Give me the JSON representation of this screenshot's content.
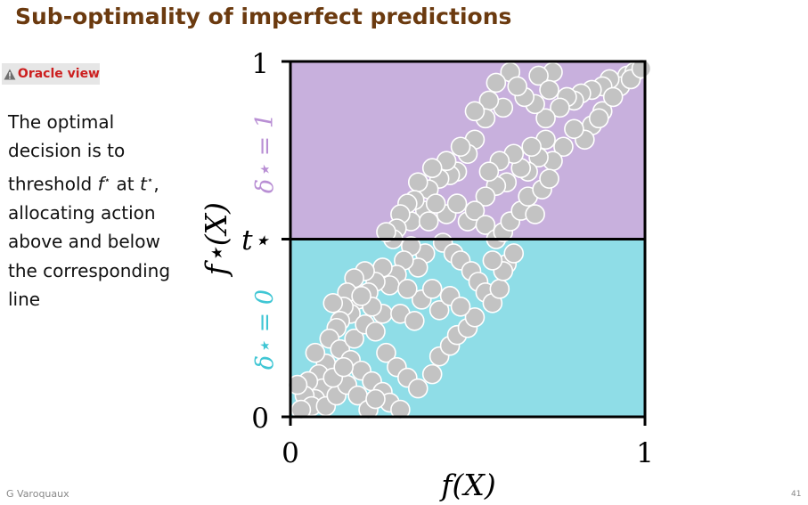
{
  "slide": {
    "title": "Sub-optimality of imperfect predictions",
    "badge_label": "Oracle view",
    "body_lines": [
      "The optimal",
      "decision is to",
      "threshold",
      "allocating action",
      "above and below",
      "the corresponding",
      "line"
    ],
    "threshold_fstar": "f",
    "threshold_star": "⋆",
    "threshold_at": "at",
    "threshold_t": "t",
    "threshold_tail": ","
  },
  "footer": {
    "author": "G Varoquaux",
    "page": "41"
  },
  "colors": {
    "title": "#6b3a0f",
    "upper_region": "#c8b0dd",
    "lower_region": "#8fdde7",
    "upper_label": "#b98fd4",
    "lower_label": "#3fc6d4",
    "points": "#c3c3c3",
    "warning": "#cc1f1f"
  },
  "chart_data": {
    "type": "scatter",
    "xlabel": "f(X)",
    "ylabel": "f⋆(X)",
    "xlim": [
      0,
      1
    ],
    "ylim": [
      0,
      1
    ],
    "x_ticks": [
      "0",
      "1"
    ],
    "y_ticks": [
      "0",
      "t⋆",
      "1"
    ],
    "threshold": 0.5,
    "threshold_label": "t⋆",
    "upper_region_label": "δ⋆ = 1",
    "lower_region_label": "δ⋆ = 0",
    "points": [
      [
        0.95,
        0.96
      ],
      [
        0.97,
        0.97
      ],
      [
        0.93,
        0.93
      ],
      [
        0.96,
        0.95
      ],
      [
        0.9,
        0.95
      ],
      [
        0.88,
        0.93
      ],
      [
        0.85,
        0.92
      ],
      [
        0.82,
        0.91
      ],
      [
        0.8,
        0.89
      ],
      [
        0.78,
        0.9
      ],
      [
        0.74,
        0.97
      ],
      [
        0.7,
        0.96
      ],
      [
        0.73,
        0.92
      ],
      [
        0.76,
        0.87
      ],
      [
        0.72,
        0.84
      ],
      [
        0.69,
        0.88
      ],
      [
        0.66,
        0.9
      ],
      [
        0.62,
        0.97
      ],
      [
        0.64,
        0.93
      ],
      [
        0.58,
        0.94
      ],
      [
        0.6,
        0.87
      ],
      [
        0.56,
        0.89
      ],
      [
        0.55,
        0.84
      ],
      [
        0.52,
        0.86
      ],
      [
        0.85,
        0.82
      ],
      [
        0.88,
        0.86
      ],
      [
        0.83,
        0.78
      ],
      [
        0.8,
        0.81
      ],
      [
        0.77,
        0.76
      ],
      [
        0.74,
        0.72
      ],
      [
        0.72,
        0.78
      ],
      [
        0.7,
        0.73
      ],
      [
        0.68,
        0.76
      ],
      [
        0.67,
        0.69
      ],
      [
        0.65,
        0.7
      ],
      [
        0.63,
        0.74
      ],
      [
        0.61,
        0.66
      ],
      [
        0.59,
        0.72
      ],
      [
        0.58,
        0.65
      ],
      [
        0.56,
        0.69
      ],
      [
        0.55,
        0.62
      ],
      [
        0.52,
        0.78
      ],
      [
        0.5,
        0.74
      ],
      [
        0.48,
        0.76
      ],
      [
        0.47,
        0.69
      ],
      [
        0.45,
        0.68
      ],
      [
        0.44,
        0.72
      ],
      [
        0.42,
        0.67
      ],
      [
        0.4,
        0.7
      ],
      [
        0.39,
        0.64
      ],
      [
        0.38,
        0.58
      ],
      [
        0.36,
        0.66
      ],
      [
        0.35,
        0.61
      ],
      [
        0.34,
        0.55
      ],
      [
        0.33,
        0.6
      ],
      [
        0.31,
        0.57
      ],
      [
        0.3,
        0.53
      ],
      [
        0.29,
        0.5
      ],
      [
        0.27,
        0.52
      ],
      [
        0.44,
        0.57
      ],
      [
        0.47,
        0.6
      ],
      [
        0.5,
        0.55
      ],
      [
        0.52,
        0.58
      ],
      [
        0.55,
        0.54
      ],
      [
        0.58,
        0.5
      ],
      [
        0.6,
        0.52
      ],
      [
        0.62,
        0.55
      ],
      [
        0.65,
        0.58
      ],
      [
        0.67,
        0.62
      ],
      [
        0.69,
        0.57
      ],
      [
        0.71,
        0.64
      ],
      [
        0.73,
        0.67
      ],
      [
        0.41,
        0.6
      ],
      [
        0.39,
        0.55
      ],
      [
        0.43,
        0.49
      ],
      [
        0.46,
        0.46
      ],
      [
        0.48,
        0.44
      ],
      [
        0.51,
        0.41
      ],
      [
        0.53,
        0.38
      ],
      [
        0.55,
        0.35
      ],
      [
        0.57,
        0.32
      ],
      [
        0.59,
        0.36
      ],
      [
        0.61,
        0.43
      ],
      [
        0.63,
        0.46
      ],
      [
        0.6,
        0.41
      ],
      [
        0.57,
        0.44
      ],
      [
        0.38,
        0.46
      ],
      [
        0.36,
        0.42
      ],
      [
        0.34,
        0.48
      ],
      [
        0.32,
        0.44
      ],
      [
        0.3,
        0.4
      ],
      [
        0.28,
        0.37
      ],
      [
        0.26,
        0.42
      ],
      [
        0.24,
        0.38
      ],
      [
        0.22,
        0.35
      ],
      [
        0.21,
        0.41
      ],
      [
        0.19,
        0.33
      ],
      [
        0.18,
        0.39
      ],
      [
        0.17,
        0.29
      ],
      [
        0.16,
        0.35
      ],
      [
        0.15,
        0.31
      ],
      [
        0.14,
        0.27
      ],
      [
        0.13,
        0.25
      ],
      [
        0.12,
        0.32
      ],
      [
        0.11,
        0.22
      ],
      [
        0.14,
        0.19
      ],
      [
        0.17,
        0.16
      ],
      [
        0.2,
        0.13
      ],
      [
        0.23,
        0.1
      ],
      [
        0.26,
        0.07
      ],
      [
        0.28,
        0.04
      ],
      [
        0.31,
        0.02
      ],
      [
        0.27,
        0.18
      ],
      [
        0.3,
        0.14
      ],
      [
        0.33,
        0.11
      ],
      [
        0.36,
        0.08
      ],
      [
        0.4,
        0.12
      ],
      [
        0.42,
        0.17
      ],
      [
        0.45,
        0.2
      ],
      [
        0.47,
        0.23
      ],
      [
        0.5,
        0.25
      ],
      [
        0.52,
        0.28
      ],
      [
        0.37,
        0.33
      ],
      [
        0.4,
        0.36
      ],
      [
        0.42,
        0.3
      ],
      [
        0.45,
        0.34
      ],
      [
        0.48,
        0.31
      ],
      [
        0.1,
        0.15
      ],
      [
        0.08,
        0.12
      ],
      [
        0.09,
        0.08
      ],
      [
        0.07,
        0.05
      ],
      [
        0.05,
        0.1
      ],
      [
        0.04,
        0.06
      ],
      [
        0.06,
        0.03
      ],
      [
        0.03,
        0.02
      ],
      [
        0.1,
        0.03
      ],
      [
        0.13,
        0.06
      ],
      [
        0.16,
        0.09
      ],
      [
        0.19,
        0.06
      ],
      [
        0.22,
        0.02
      ],
      [
        0.24,
        0.05
      ],
      [
        0.18,
        0.22
      ],
      [
        0.21,
        0.26
      ],
      [
        0.24,
        0.24
      ],
      [
        0.26,
        0.29
      ],
      [
        0.23,
        0.31
      ],
      [
        0.2,
        0.34
      ],
      [
        0.33,
        0.36
      ],
      [
        0.31,
        0.29
      ],
      [
        0.35,
        0.27
      ],
      [
        0.12,
        0.11
      ],
      [
        0.15,
        0.14
      ],
      [
        0.07,
        0.18
      ],
      [
        0.02,
        0.09
      ],
      [
        0.99,
        0.98
      ],
      [
        0.91,
        0.9
      ],
      [
        0.87,
        0.84
      ]
    ]
  }
}
